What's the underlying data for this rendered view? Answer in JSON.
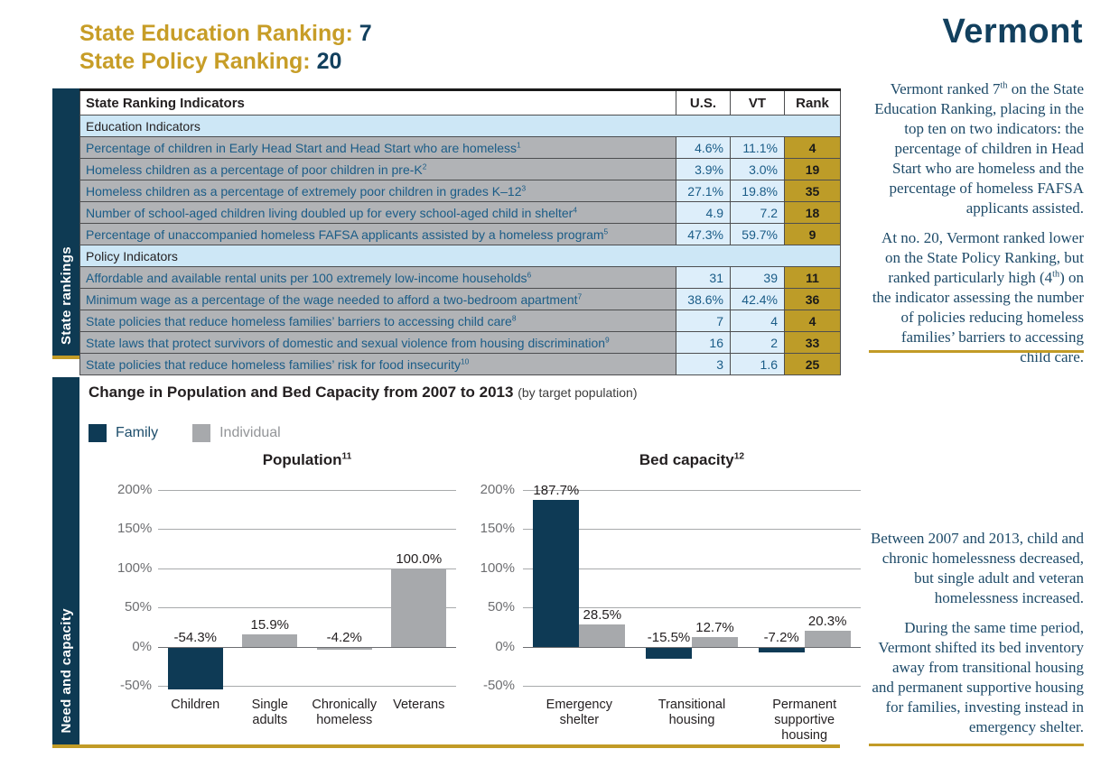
{
  "header": {
    "education_ranking_label": "State Education Ranking:",
    "education_ranking_value": "7",
    "policy_ranking_label": "State Policy Ranking:",
    "policy_ranking_value": "20",
    "state_name": "Vermont"
  },
  "colors": {
    "navy": "#0e3a55",
    "gold": "#c29b26",
    "gray": "#a7a9ac",
    "rank_cell_gold": "#bd9c28",
    "table_text_blue": "#1a5c87"
  },
  "rankings_table": {
    "section_label": "State rankings",
    "headers": [
      "State Ranking Indicators",
      "U.S.",
      "VT",
      "Rank"
    ],
    "groups": [
      {
        "label": "Education Indicators",
        "rows": [
          {
            "indicator": "Percentage of children in Early Head Start and Head Start who are homeless",
            "footnote": "1",
            "us": "4.6%",
            "vt": "11.1%",
            "rank": "4"
          },
          {
            "indicator": "Homeless children as a percentage of poor children in pre-K",
            "footnote": "2",
            "us": "3.9%",
            "vt": "3.0%",
            "rank": "19"
          },
          {
            "indicator": "Homeless children as a percentage of extremely poor children in grades K–12",
            "footnote": "3",
            "us": "27.1%",
            "vt": "19.8%",
            "rank": "35"
          },
          {
            "indicator": "Number of school-aged children living doubled up for every school-aged child in shelter",
            "footnote": "4",
            "us": "4.9",
            "vt": "7.2",
            "rank": "18"
          },
          {
            "indicator": "Percentage of unaccompanied homeless FAFSA applicants assisted by a homeless program",
            "footnote": "5",
            "us": "47.3%",
            "vt": "59.7%",
            "rank": "9"
          }
        ]
      },
      {
        "label": "Policy Indicators",
        "rows": [
          {
            "indicator": "Affordable and available rental units per 100 extremely low-income households",
            "footnote": "6",
            "us": "31",
            "vt": "39",
            "rank": "11"
          },
          {
            "indicator": "Minimum wage as a percentage of the wage needed to afford a two-bedroom apartment",
            "footnote": "7",
            "us": "38.6%",
            "vt": "42.4%",
            "rank": "36"
          },
          {
            "indicator": "State policies that reduce homeless families’ barriers to accessing child care",
            "footnote": "8",
            "us": "7",
            "vt": "4",
            "rank": "4"
          },
          {
            "indicator": "State laws that protect survivors of domestic and sexual violence from housing discrimination",
            "footnote": "9",
            "us": "16",
            "vt": "2",
            "rank": "33"
          },
          {
            "indicator": "State policies that reduce homeless families’ risk for food insecurity",
            "footnote": "10",
            "us": "3",
            "vt": "1.6",
            "rank": "25"
          }
        ]
      }
    ]
  },
  "right_column": {
    "top_paragraphs": [
      "Vermont ranked 7th on the State Education Ranking, placing in the top ten on two indicators: the percentage of children in Head Start who are homeless and the percentage of homeless FAFSA applicants assisted.",
      "At no. 20, Vermont ranked lower on the State Policy Ranking, but ranked particularly high (4th) on the indicator assessing the number of policies reducing homeless families’ barriers to accessing child care."
    ],
    "bottom_paragraphs": [
      "Between 2007 and 2013, child and chronic homelessness decreased, but single adult and veteran homelessness increased.",
      "During the same time period, Vermont shifted its bed inventory away from transitional housing and permanent supportive housing for families, investing instead in emergency shelter."
    ]
  },
  "capacity_section": {
    "section_label": "Need and capacity",
    "title": "Change in Population and Bed Capacity from 2007 to 2013",
    "subtitle": "(by target population)",
    "legend": [
      {
        "label": "Family",
        "color": "#0e3a55",
        "label_color": "#1d4d6b"
      },
      {
        "label": "Individual",
        "color": "#a7a9ac",
        "label_color": "#939598"
      }
    ]
  },
  "chart_data": [
    {
      "type": "bar",
      "title": "Population",
      "title_footnote": "11",
      "ylim": [
        -50,
        200
      ],
      "yticks": [
        "200%",
        "150%",
        "100%",
        "50%",
        "0%",
        "-50%"
      ],
      "grid": true,
      "legend_position": "top-left shared",
      "categories": [
        "Children",
        "Single\nadults",
        "Chronically\nhomeless",
        "Veterans"
      ],
      "series": [
        {
          "name": "Family",
          "values": [
            -54.3,
            null,
            null,
            null
          ],
          "labels": [
            "-54.3%",
            null,
            null,
            null
          ]
        },
        {
          "name": "Individual",
          "values": [
            null,
            15.9,
            -4.2,
            100.0
          ],
          "labels": [
            null,
            "15.9%",
            "-4.2%",
            "100.0%"
          ]
        }
      ]
    },
    {
      "type": "bar",
      "title": "Bed capacity",
      "title_footnote": "12",
      "ylim": [
        -50,
        200
      ],
      "yticks": [
        "200%",
        "150%",
        "100%",
        "50%",
        "0%",
        "-50%"
      ],
      "grid": true,
      "legend_position": "top-left shared",
      "categories": [
        "Emergency\nshelter",
        "Transitional\nhousing",
        "Permanent\nsupportive housing"
      ],
      "series": [
        {
          "name": "Family",
          "values": [
            187.7,
            -15.5,
            -7.2
          ],
          "labels": [
            "187.7%",
            "-15.5%",
            "-7.2%"
          ]
        },
        {
          "name": "Individual",
          "values": [
            28.5,
            12.7,
            20.3
          ],
          "labels": [
            "28.5%",
            "12.7%",
            "20.3%"
          ]
        }
      ]
    }
  ]
}
